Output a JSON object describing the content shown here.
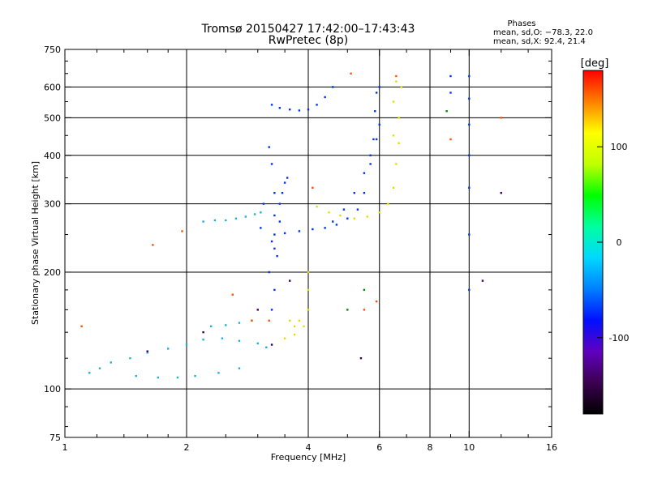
{
  "chart_data": {
    "type": "scatter",
    "title": "Tromsø 20150427 17:42:00–17:43:43",
    "subtitle": "RwPretec (8p)",
    "stats": {
      "heading": "Phases",
      "line1": "mean, sd,O: −78.3, 22.0",
      "line2": "mean, sd,X:  92.4, 21.4"
    },
    "xlabel": "Frequency [MHz]",
    "ylabel": "Stationary phase Virtual Height [km]",
    "x_scale": "log",
    "y_scale": "log",
    "xlim": [
      1,
      16
    ],
    "ylim": [
      75,
      750
    ],
    "x_ticks": [
      1,
      2,
      4,
      6,
      8,
      10,
      16
    ],
    "y_ticks": [
      75,
      100,
      200,
      300,
      400,
      500,
      600,
      750
    ],
    "grid_x": [
      2,
      4,
      6,
      8,
      10
    ],
    "grid_y": [
      100,
      200,
      300,
      400,
      500,
      600
    ],
    "grid": true,
    "colorbar": {
      "label": "[deg]",
      "range": [
        -180,
        180
      ],
      "ticks": [
        100,
        0,
        -100
      ],
      "colors": [
        "#000000",
        "#3c0050",
        "#6000c0",
        "#0010ff",
        "#0080ff",
        "#00d8ff",
        "#00ffa0",
        "#00ff00",
        "#c0ff00",
        "#ffff00",
        "#ff8000",
        "#ff0000"
      ]
    },
    "series": [
      {
        "color": "#1ab0e0",
        "points": [
          [
            1.15,
            110
          ],
          [
            1.22,
            113
          ],
          [
            1.3,
            117
          ],
          [
            1.45,
            120
          ],
          [
            1.6,
            124
          ],
          [
            1.8,
            127
          ],
          [
            2.0,
            130
          ],
          [
            2.2,
            134
          ],
          [
            2.45,
            135
          ],
          [
            2.7,
            133
          ],
          [
            3.0,
            131
          ],
          [
            3.15,
            128
          ],
          [
            1.5,
            108
          ],
          [
            1.7,
            107
          ],
          [
            1.9,
            107
          ],
          [
            2.1,
            108
          ],
          [
            2.4,
            110
          ],
          [
            2.7,
            113
          ],
          [
            2.2,
            270
          ],
          [
            2.35,
            272
          ],
          [
            2.5,
            272
          ],
          [
            2.65,
            275
          ],
          [
            2.8,
            278
          ],
          [
            2.95,
            282
          ],
          [
            3.05,
            285
          ],
          [
            2.3,
            145
          ],
          [
            2.5,
            146
          ],
          [
            2.7,
            148
          ],
          [
            2.9,
            150
          ]
        ]
      },
      {
        "color": "#0033ee",
        "points": [
          [
            3.25,
            540
          ],
          [
            3.4,
            530
          ],
          [
            3.6,
            525
          ],
          [
            3.8,
            522
          ],
          [
            4.0,
            525
          ],
          [
            4.2,
            540
          ],
          [
            4.4,
            565
          ],
          [
            4.6,
            600
          ],
          [
            3.3,
            250
          ],
          [
            3.5,
            252
          ],
          [
            3.8,
            255
          ],
          [
            4.1,
            258
          ],
          [
            4.4,
            260
          ],
          [
            4.7,
            265
          ],
          [
            5.0,
            275
          ],
          [
            5.3,
            290
          ],
          [
            5.5,
            320
          ],
          [
            5.7,
            380
          ],
          [
            5.8,
            440
          ],
          [
            5.85,
            520
          ],
          [
            5.9,
            580
          ],
          [
            6.0,
            600
          ],
          [
            4.6,
            270
          ],
          [
            4.9,
            290
          ],
          [
            5.2,
            320
          ],
          [
            5.5,
            360
          ],
          [
            5.7,
            400
          ],
          [
            5.9,
            440
          ],
          [
            6.0,
            480
          ],
          [
            3.25,
            160
          ],
          [
            3.2,
            200
          ],
          [
            3.25,
            240
          ],
          [
            3.3,
            280
          ],
          [
            3.3,
            320
          ],
          [
            3.25,
            380
          ],
          [
            3.2,
            420
          ],
          [
            3.1,
            300
          ],
          [
            3.05,
            260
          ],
          [
            3.3,
            180
          ],
          [
            3.35,
            220
          ],
          [
            3.4,
            300
          ],
          [
            3.45,
            320
          ],
          [
            3.5,
            340
          ],
          [
            3.55,
            350
          ],
          [
            3.3,
            230
          ],
          [
            3.4,
            270
          ],
          [
            10.0,
            180
          ],
          [
            10.0,
            250
          ],
          [
            10.0,
            330
          ],
          [
            10.0,
            400
          ],
          [
            10.0,
            480
          ],
          [
            10.0,
            560
          ],
          [
            10.0,
            640
          ],
          [
            9.0,
            640
          ],
          [
            9.0,
            580
          ]
        ]
      },
      {
        "color": "#e0e000",
        "points": [
          [
            3.5,
            135
          ],
          [
            3.7,
            138
          ],
          [
            3.9,
            145
          ],
          [
            4.0,
            160
          ],
          [
            4.0,
            180
          ],
          [
            4.0,
            200
          ],
          [
            3.6,
            150
          ],
          [
            3.8,
            150
          ],
          [
            3.7,
            145
          ],
          [
            4.2,
            295
          ],
          [
            4.5,
            285
          ],
          [
            4.8,
            280
          ],
          [
            5.2,
            275
          ],
          [
            5.6,
            278
          ],
          [
            6.0,
            285
          ],
          [
            6.3,
            300
          ],
          [
            6.5,
            330
          ],
          [
            6.6,
            380
          ],
          [
            6.7,
            430
          ],
          [
            6.7,
            500
          ],
          [
            6.8,
            600
          ],
          [
            6.5,
            450
          ],
          [
            6.5,
            550
          ],
          [
            6.6,
            620
          ]
        ]
      },
      {
        "color": "#ff5000",
        "points": [
          [
            1.65,
            235
          ],
          [
            1.95,
            255
          ],
          [
            2.6,
            175
          ],
          [
            2.9,
            150
          ],
          [
            3.2,
            150
          ],
          [
            4.1,
            330
          ],
          [
            5.1,
            650
          ],
          [
            5.5,
            160
          ],
          [
            5.9,
            168
          ],
          [
            12.0,
            500
          ],
          [
            9.0,
            440
          ],
          [
            6.6,
            640
          ],
          [
            1.1,
            145
          ]
        ]
      },
      {
        "color": "#008800",
        "points": [
          [
            5.0,
            160
          ],
          [
            8.8,
            520
          ],
          [
            5.5,
            180
          ]
        ]
      },
      {
        "color": "#3c0060",
        "points": [
          [
            3.0,
            160
          ],
          [
            3.6,
            190
          ],
          [
            2.2,
            140
          ],
          [
            1.6,
            125
          ],
          [
            5.4,
            120
          ],
          [
            10.8,
            190
          ],
          [
            12.0,
            320
          ],
          [
            3.25,
            130
          ]
        ]
      }
    ]
  }
}
